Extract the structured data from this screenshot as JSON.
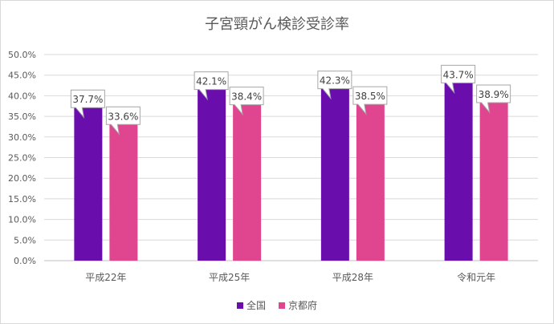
{
  "chart_data": {
    "type": "bar",
    "title": "子宮頸がん検診受診率",
    "categories": [
      "平成22年",
      "平成25年",
      "平成28年",
      "令和元年"
    ],
    "series": [
      {
        "name": "全国",
        "color": "#6a0dad",
        "values": [
          37.7,
          42.1,
          42.3,
          43.7
        ],
        "labels": [
          "37.7%",
          "42.1%",
          "42.3%",
          "43.7%"
        ]
      },
      {
        "name": "京都府",
        "color": "#e0458f",
        "values": [
          33.6,
          38.4,
          38.5,
          38.9
        ],
        "labels": [
          "33.6%",
          "38.4%",
          "38.5%",
          "38.9%"
        ]
      }
    ],
    "ylim": [
      0,
      50
    ],
    "yticks": [
      "0.0%",
      "5.0%",
      "10.0%",
      "15.0%",
      "20.0%",
      "25.0%",
      "30.0%",
      "35.0%",
      "40.0%",
      "45.0%",
      "50.0%"
    ],
    "grid": true,
    "legend_position": "bottom"
  }
}
